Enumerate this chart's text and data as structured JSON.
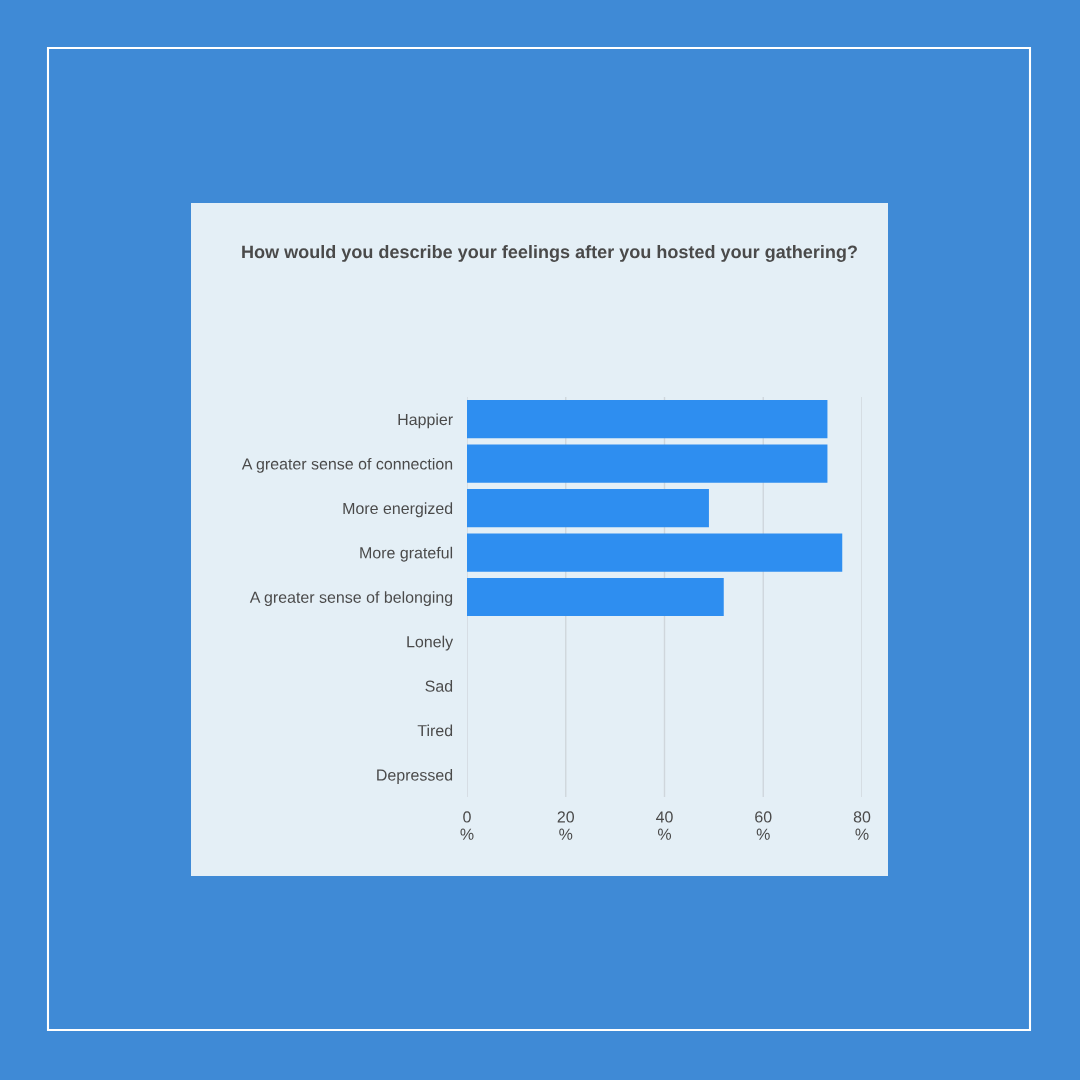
{
  "chart_data": {
    "type": "bar",
    "orientation": "horizontal",
    "title": "How would you describe your feelings after you hosted your gathering?",
    "categories": [
      "Happier",
      "A greater sense of connection",
      "More energized",
      "More grateful",
      "A greater sense of belonging",
      "Lonely",
      "Sad",
      "Tired",
      "Depressed"
    ],
    "values": [
      73,
      73,
      49,
      76,
      52,
      0,
      0,
      0,
      0
    ],
    "color": "#2e8ef0",
    "xlim": [
      0,
      80
    ],
    "xticks": [
      {
        "value": 0,
        "label": "0\n%"
      },
      {
        "value": 20,
        "label": "20\n%"
      },
      {
        "value": 40,
        "label": "40\n%"
      },
      {
        "value": 60,
        "label": "60\n%"
      },
      {
        "value": 80,
        "label": "80\n%"
      }
    ],
    "grid": "x"
  }
}
